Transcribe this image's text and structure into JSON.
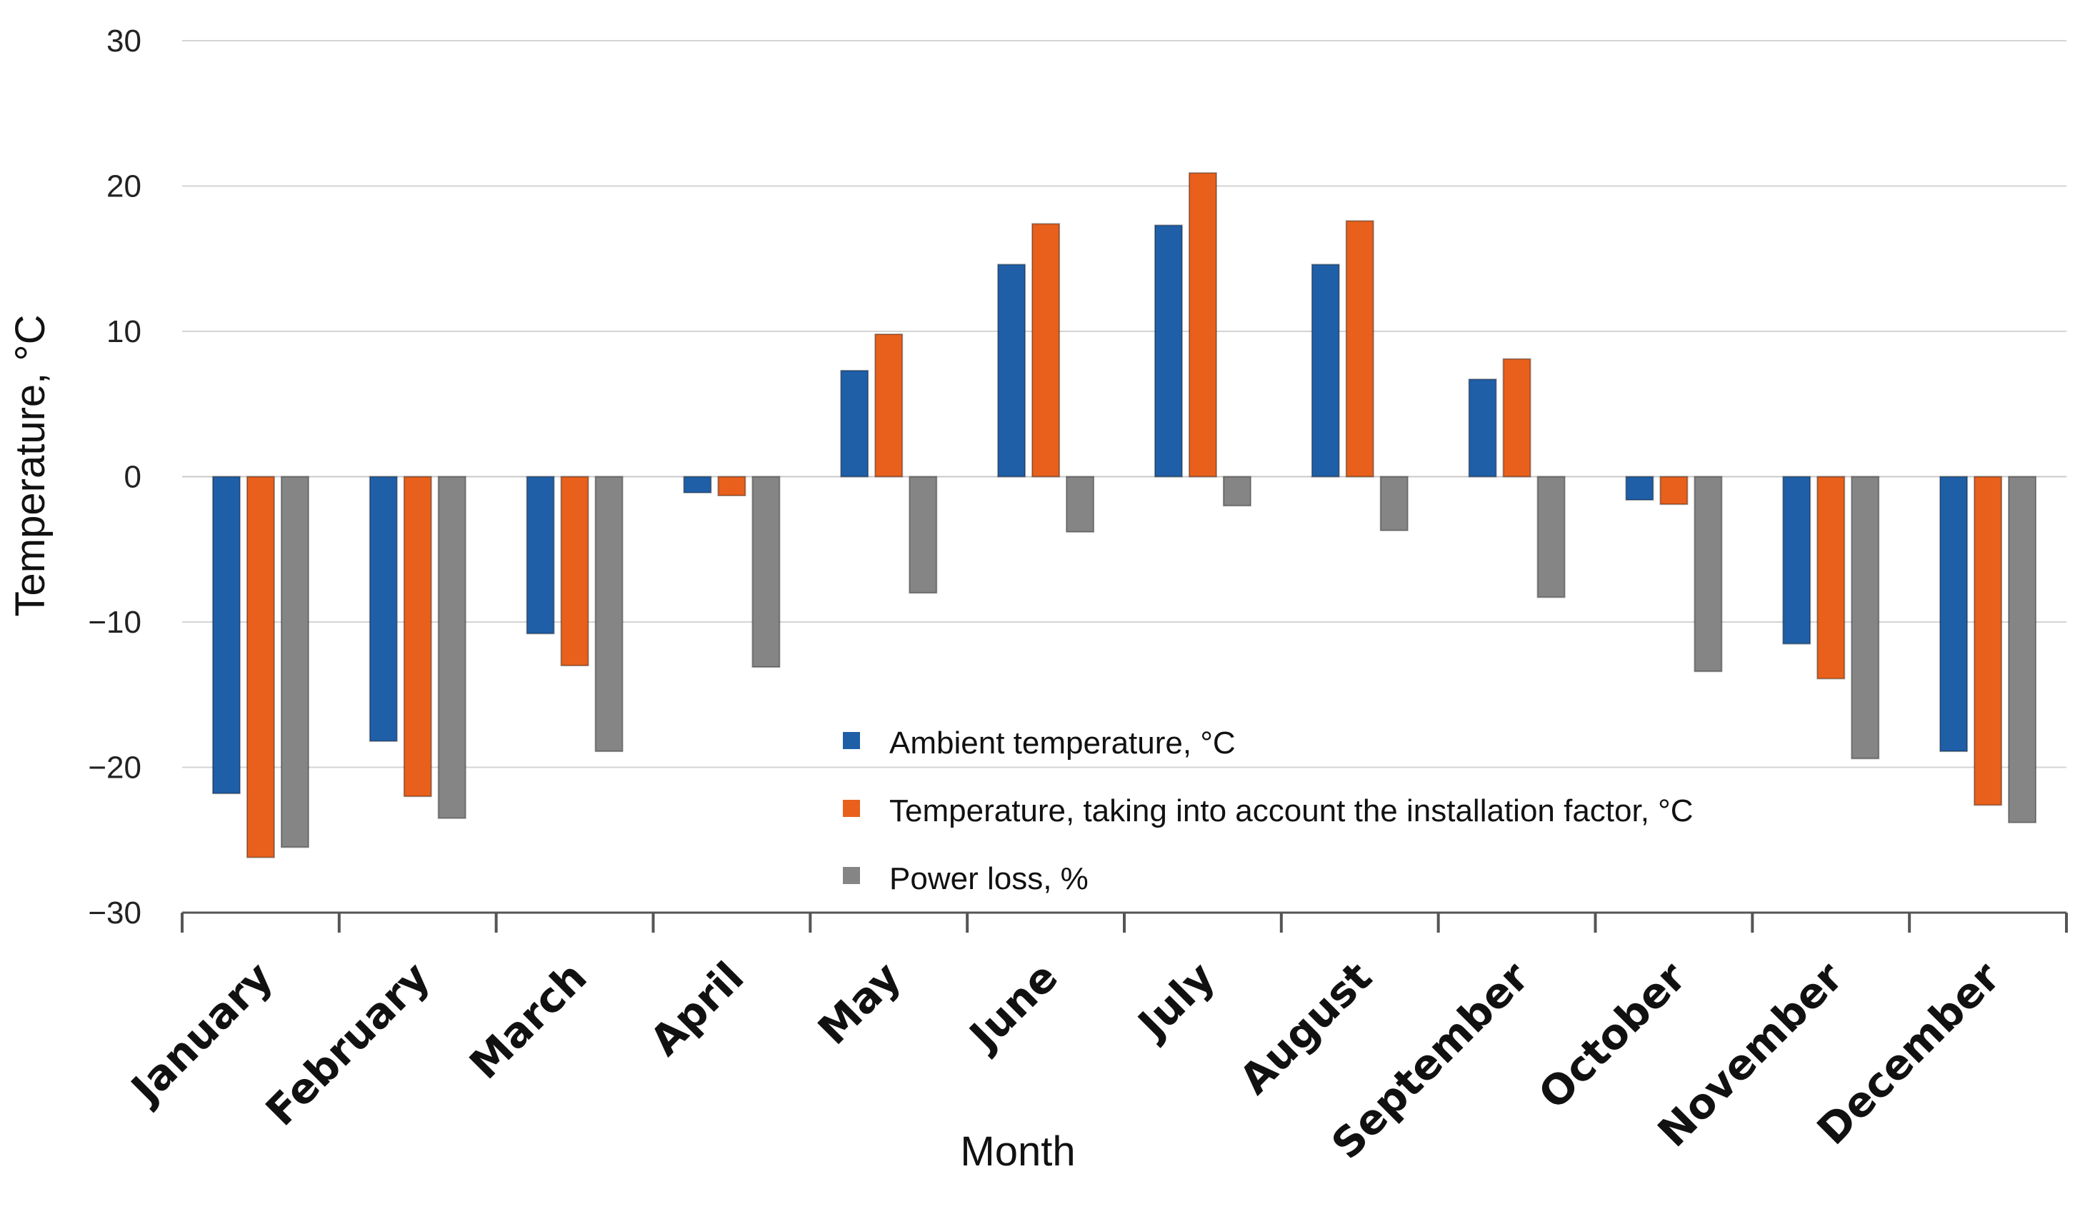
{
  "chart_data": {
    "type": "bar",
    "title": "",
    "xlabel": "Month",
    "ylabel": "Temperature, °C",
    "ylim": [
      -30,
      30
    ],
    "yticks": [
      30,
      20,
      10,
      0,
      -10,
      -20,
      -30
    ],
    "ytick_labels": [
      "30",
      "20",
      "10",
      "0",
      "−10",
      "−20",
      "−30"
    ],
    "grid": true,
    "legend_position": "center-lower",
    "categories": [
      "January",
      "February",
      "March",
      "April",
      "May",
      "June",
      "July",
      "August",
      "September",
      "October",
      "November",
      "December"
    ],
    "series": [
      {
        "name": "Ambient temperature, °C",
        "color": "#1f5fa8",
        "values": [
          -21.8,
          -18.2,
          -10.8,
          -1.1,
          7.3,
          14.6,
          17.3,
          14.6,
          6.7,
          -1.6,
          -11.5,
          -18.9
        ]
      },
      {
        "name": "Temperature, taking into account the installation factor, °C",
        "color": "#e8601c",
        "values": [
          -26.2,
          -22.0,
          -13.0,
          -1.3,
          9.8,
          17.4,
          20.9,
          17.6,
          8.1,
          -1.9,
          -13.9,
          -22.6
        ]
      },
      {
        "name": "Power loss, %",
        "color": "#858585",
        "values": [
          -25.5,
          -23.5,
          -18.9,
          -13.1,
          -8.0,
          -3.8,
          -2.0,
          -3.7,
          -8.3,
          -13.4,
          -19.4,
          -23.8
        ]
      }
    ]
  }
}
